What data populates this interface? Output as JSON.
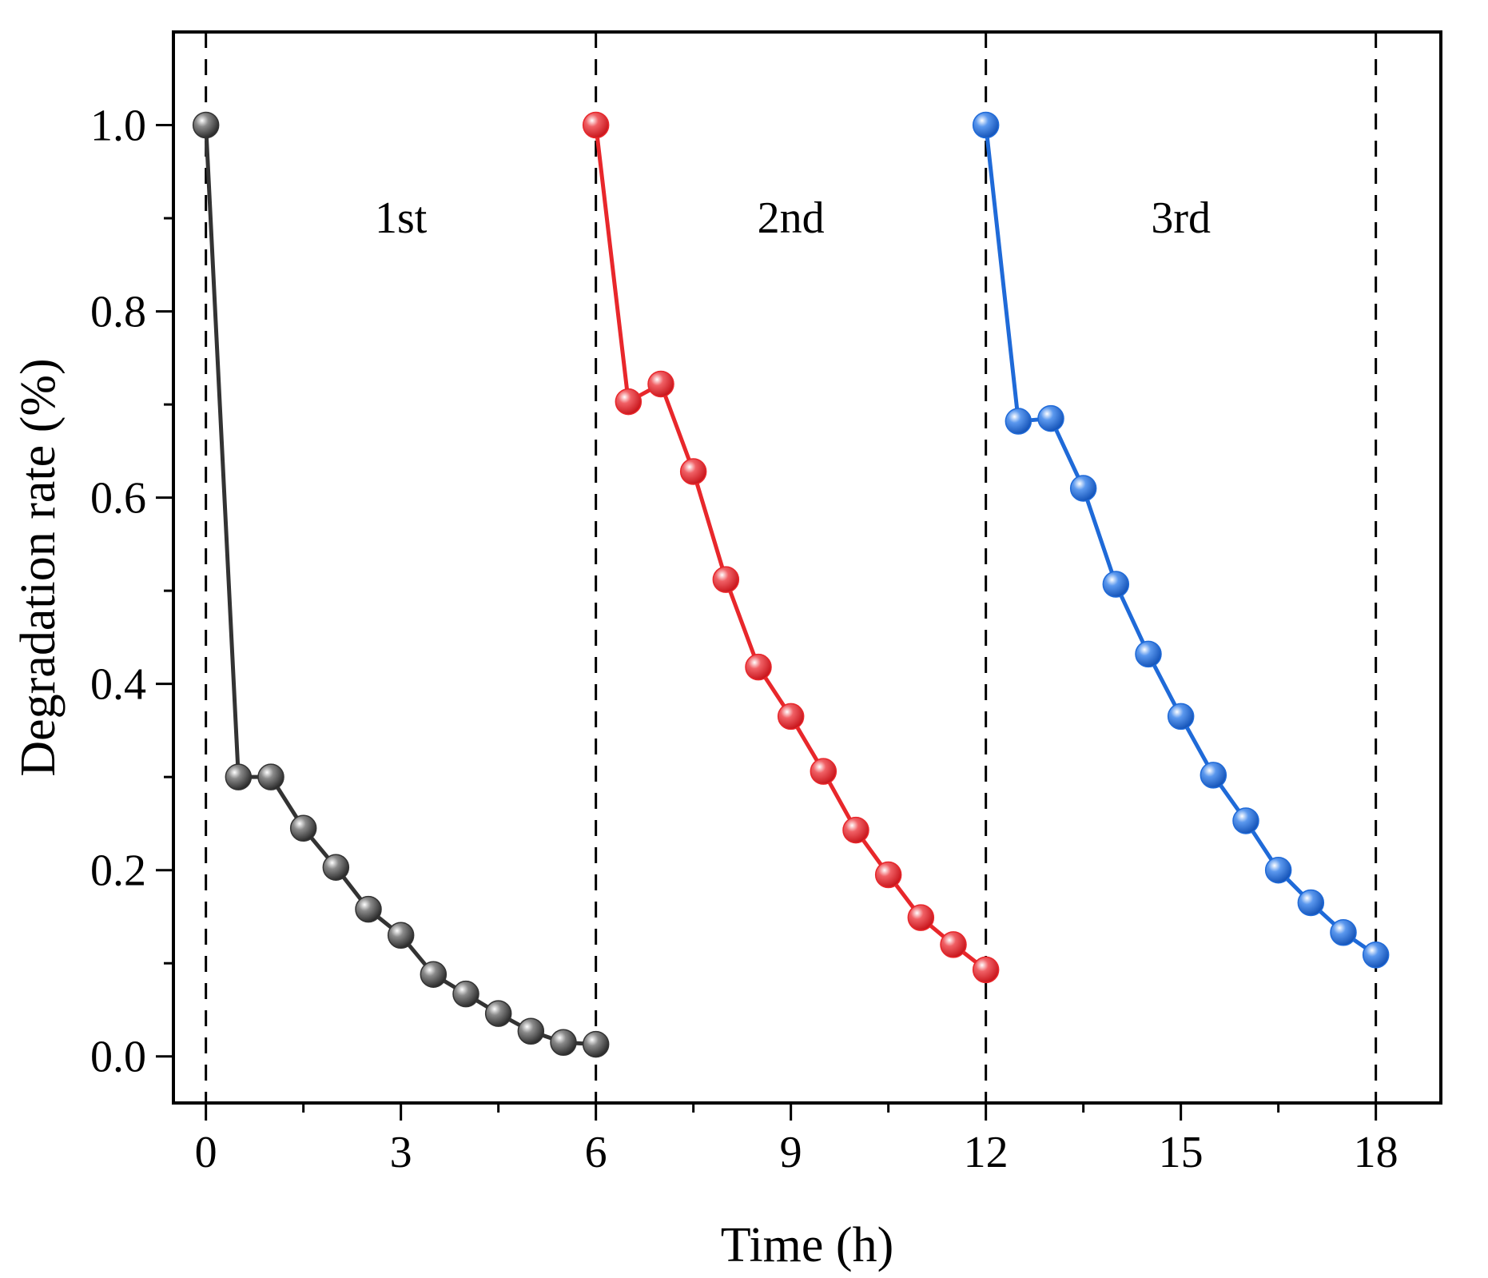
{
  "chart_data": {
    "type": "line",
    "title": "",
    "xlabel": "Time (h)",
    "ylabel": "Degradation rate (%)",
    "xlim": [
      -0.5,
      19
    ],
    "ylim": [
      -0.05,
      1.1
    ],
    "xticks": [
      0,
      3,
      6,
      9,
      12,
      15,
      18
    ],
    "xtick_labels": [
      "0",
      "3",
      "6",
      "9",
      "12",
      "15",
      "18"
    ],
    "x_minor_ticks": [
      1.5,
      4.5,
      7.5,
      10.5,
      13.5,
      16.5
    ],
    "yticks": [
      0.0,
      0.2,
      0.4,
      0.6,
      0.8,
      1.0
    ],
    "ytick_labels": [
      "0.0",
      "0.2",
      "0.4",
      "0.6",
      "0.8",
      "1.0"
    ],
    "y_minor_ticks": [
      0.1,
      0.3,
      0.5,
      0.7,
      0.9
    ],
    "grid": false,
    "dividers": [
      0,
      6,
      12,
      18
    ],
    "annotations": [
      {
        "text": "1st",
        "x": 3,
        "y": 0.9
      },
      {
        "text": "2nd",
        "x": 9,
        "y": 0.9
      },
      {
        "text": "3rd",
        "x": 15,
        "y": 0.9
      }
    ],
    "series": [
      {
        "name": "1st",
        "color": "#333333",
        "x": [
          0,
          0.5,
          1,
          1.5,
          2,
          2.5,
          3,
          3.5,
          4,
          4.5,
          5,
          5.5,
          6
        ],
        "values": [
          1.0,
          0.3,
          0.3,
          0.245,
          0.203,
          0.158,
          0.13,
          0.088,
          0.067,
          0.046,
          0.027,
          0.015,
          0.013
        ]
      },
      {
        "name": "2nd",
        "color": "#e8272b",
        "x": [
          6,
          6.5,
          7,
          7.5,
          8,
          8.5,
          9,
          9.5,
          10,
          10.5,
          11,
          11.5,
          12
        ],
        "values": [
          1.0,
          0.703,
          0.722,
          0.628,
          0.512,
          0.418,
          0.365,
          0.306,
          0.243,
          0.195,
          0.149,
          0.12,
          0.093
        ]
      },
      {
        "name": "3rd",
        "color": "#1f6ad8",
        "x": [
          12,
          12.5,
          13,
          13.5,
          14,
          14.5,
          15,
          15.5,
          16,
          16.5,
          17,
          17.5,
          18
        ],
        "values": [
          1.0,
          0.682,
          0.685,
          0.61,
          0.507,
          0.432,
          0.365,
          0.302,
          0.253,
          0.2,
          0.165,
          0.133,
          0.109
        ]
      }
    ]
  }
}
